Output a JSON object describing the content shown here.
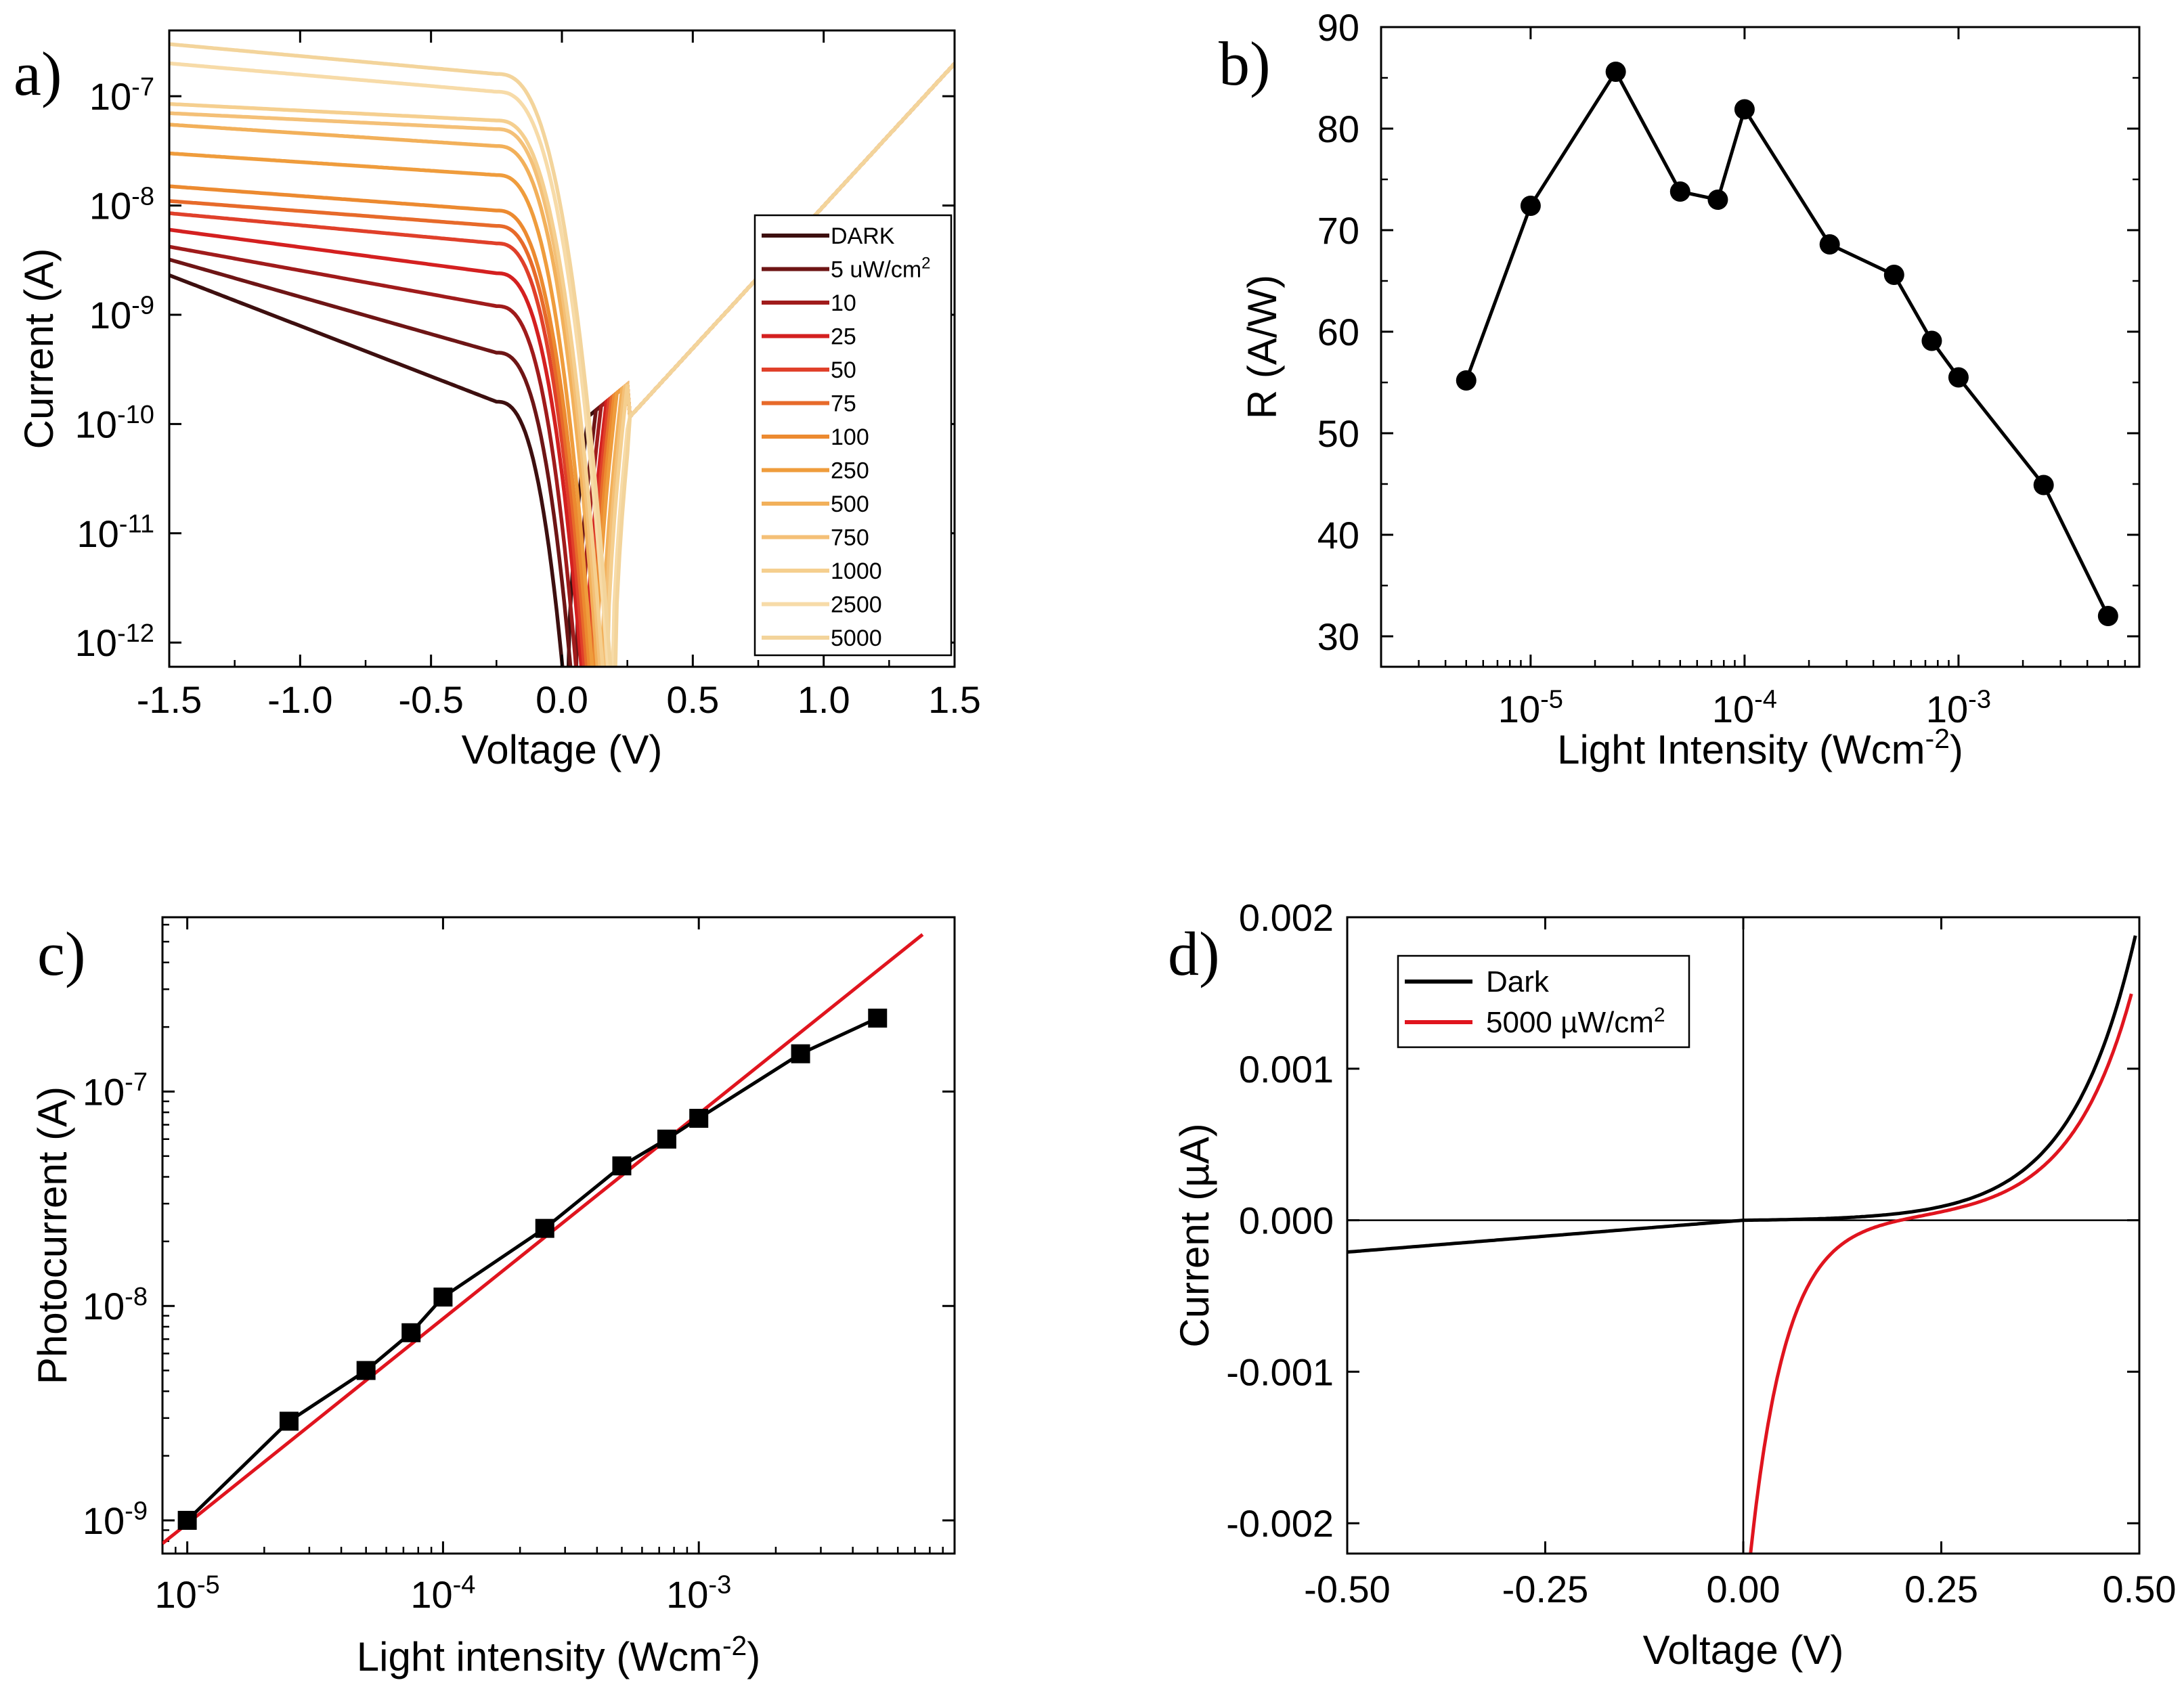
{
  "chart_data": [
    {
      "panel": "a)",
      "type": "line",
      "xlabel": "Voltage (V)",
      "ylabel": "Current (A)",
      "xscale": "linear",
      "yscale": "log",
      "xlim": [
        -1.5,
        1.5
      ],
      "ylim": [
        6e-13,
        4e-07
      ],
      "xticks": [
        -1.5,
        -1.0,
        -0.5,
        0.0,
        0.5,
        1.0,
        1.5
      ],
      "xticklabels": [
        "-1.5",
        "-1.0",
        "-0.5",
        "0.0",
        "0.5",
        "1.0",
        "1.5"
      ],
      "yticks": [
        1e-12,
        1e-11,
        1e-10,
        1e-09,
        1e-08,
        1e-07
      ],
      "yticklabels": [
        {
          "base": "10",
          "exp": "-12"
        },
        {
          "base": "10",
          "exp": "-11"
        },
        {
          "base": "10",
          "exp": "-10"
        },
        {
          "base": "10",
          "exp": "-9"
        },
        {
          "base": "10",
          "exp": "-8"
        },
        {
          "base": "10",
          "exp": "-7"
        }
      ],
      "legend_position": "right",
      "legend_unit": "uW/cm",
      "legend_unit_exp": "2",
      "series": [
        {
          "name": "DARK",
          "color": "#3d0f0f",
          "i_neg": 2.3e-09,
          "i_knee": 1.6e-10,
          "v_oc": 0.02
        },
        {
          "name": "5",
          "color": "#6e1515",
          "i_neg": 3.2e-09,
          "i_knee": 4.5e-10,
          "v_oc": 0.05
        },
        {
          "name": "10",
          "color": "#a01b1b",
          "i_neg": 4.2e-09,
          "i_knee": 1.2e-09,
          "v_oc": 0.07
        },
        {
          "name": "25",
          "color": "#d42020",
          "i_neg": 6e-09,
          "i_knee": 2.4e-09,
          "v_oc": 0.09
        },
        {
          "name": "50",
          "color": "#e0402a",
          "i_neg": 8.5e-09,
          "i_knee": 4.5e-09,
          "v_oc": 0.1
        },
        {
          "name": "75",
          "color": "#e76a2a",
          "i_neg": 1.1e-08,
          "i_knee": 6.5e-09,
          "v_oc": 0.11
        },
        {
          "name": "100",
          "color": "#ec8a30",
          "i_neg": 1.5e-08,
          "i_knee": 9e-09,
          "v_oc": 0.12
        },
        {
          "name": "250",
          "color": "#ef9c3c",
          "i_neg": 3e-08,
          "i_knee": 1.9e-08,
          "v_oc": 0.13
        },
        {
          "name": "500",
          "color": "#f2b05a",
          "i_neg": 5.5e-08,
          "i_knee": 3.5e-08,
          "v_oc": 0.15
        },
        {
          "name": "750",
          "color": "#f4c077",
          "i_neg": 7e-08,
          "i_knee": 5e-08,
          "v_oc": 0.16
        },
        {
          "name": "1000",
          "color": "#f5cf8f",
          "i_neg": 8.5e-08,
          "i_knee": 6e-08,
          "v_oc": 0.17
        },
        {
          "name": "2500",
          "color": "#f7dba8",
          "i_neg": 2e-07,
          "i_knee": 1.1e-07,
          "v_oc": 0.19
        },
        {
          "name": "5000",
          "color": "#f3d49b",
          "i_neg": 3e-07,
          "i_knee": 1.6e-07,
          "v_oc": 0.2
        }
      ]
    },
    {
      "panel": "b)",
      "type": "scatter",
      "xlabel": "Light Intensity (Wcm",
      "xlabel_exp": "-2",
      "xlabel_suffix": ")",
      "ylabel": "R (A/W)",
      "xscale": "log",
      "yscale": "linear",
      "xlim": [
        2e-06,
        0.007
      ],
      "ylim": [
        27,
        90
      ],
      "xticks": [
        1e-05,
        0.0001,
        0.001
      ],
      "xticklabels": [
        {
          "base": "10",
          "exp": "-5"
        },
        {
          "base": "10",
          "exp": "-4"
        },
        {
          "base": "10",
          "exp": "-3"
        }
      ],
      "yticks": [
        30,
        40,
        50,
        60,
        70,
        80,
        90
      ],
      "yticklabels": [
        "30",
        "40",
        "50",
        "60",
        "70",
        "80",
        "90"
      ],
      "x": [
        5e-06,
        1e-05,
        2.5e-05,
        5e-05,
        7.5e-05,
        0.0001,
        0.00025,
        0.0005,
        0.00075,
        0.001,
        0.0025,
        0.005
      ],
      "y": [
        55.2,
        72.4,
        85.6,
        73.8,
        73.0,
        81.9,
        68.6,
        65.6,
        59.1,
        55.5,
        44.9,
        32.0
      ]
    },
    {
      "panel": "c)",
      "type": "scatter",
      "xlabel": "Light intensity (Wcm",
      "xlabel_exp": "-2",
      "xlabel_suffix": ")",
      "ylabel": "Photocurrent (A)",
      "xscale": "log",
      "yscale": "log",
      "xlim": [
        8e-06,
        0.01
      ],
      "ylim": [
        7e-10,
        6.5e-07
      ],
      "xticks": [
        1e-05,
        0.0001,
        0.001
      ],
      "xticklabels": [
        {
          "base": "10",
          "exp": "-5"
        },
        {
          "base": "10",
          "exp": "-4"
        },
        {
          "base": "10",
          "exp": "-3"
        }
      ],
      "yticks": [
        1e-09,
        1e-08,
        1e-07
      ],
      "yticklabels": [
        {
          "base": "10",
          "exp": "-9"
        },
        {
          "base": "10",
          "exp": "-8"
        },
        {
          "base": "10",
          "exp": "-7"
        }
      ],
      "x": [
        1e-05,
        2.5e-05,
        5e-05,
        7.5e-05,
        0.0001,
        0.00025,
        0.0005,
        0.00075,
        0.001,
        0.0025,
        0.005
      ],
      "y": [
        1e-09,
        2.9e-09,
        5e-09,
        7.5e-09,
        1.1e-08,
        2.3e-08,
        4.5e-08,
        6e-08,
        7.5e-08,
        1.5e-07,
        2.2e-07
      ],
      "fit": {
        "color": "#e0141e",
        "x1": 8e-06,
        "y1": 7.8e-10,
        "x2": 0.0075,
        "y2": 5.4e-07
      }
    },
    {
      "panel": "d)",
      "type": "line",
      "xlabel": "Voltage (V)",
      "ylabel": "Current (µA)",
      "xscale": "linear",
      "yscale": "linear",
      "xlim": [
        -0.5,
        0.5
      ],
      "ylim": [
        -0.0022,
        0.002
      ],
      "xticks": [
        -0.5,
        -0.25,
        0.0,
        0.25,
        0.5
      ],
      "xticklabels": [
        "-0.50",
        "-0.25",
        "0.00",
        "0.25",
        "0.50"
      ],
      "yticks": [
        -0.002,
        -0.001,
        0.0,
        0.001,
        0.002
      ],
      "yticklabels": [
        "-0.002",
        "-0.001",
        "0.000",
        "0.001",
        "0.002"
      ],
      "legend_position": "top-left",
      "legend_unit_exp": "2",
      "series": [
        {
          "name": "Dark",
          "color": "#000000"
        },
        {
          "name": "5000 µW/cm",
          "color": "#e0141e"
        }
      ]
    }
  ]
}
